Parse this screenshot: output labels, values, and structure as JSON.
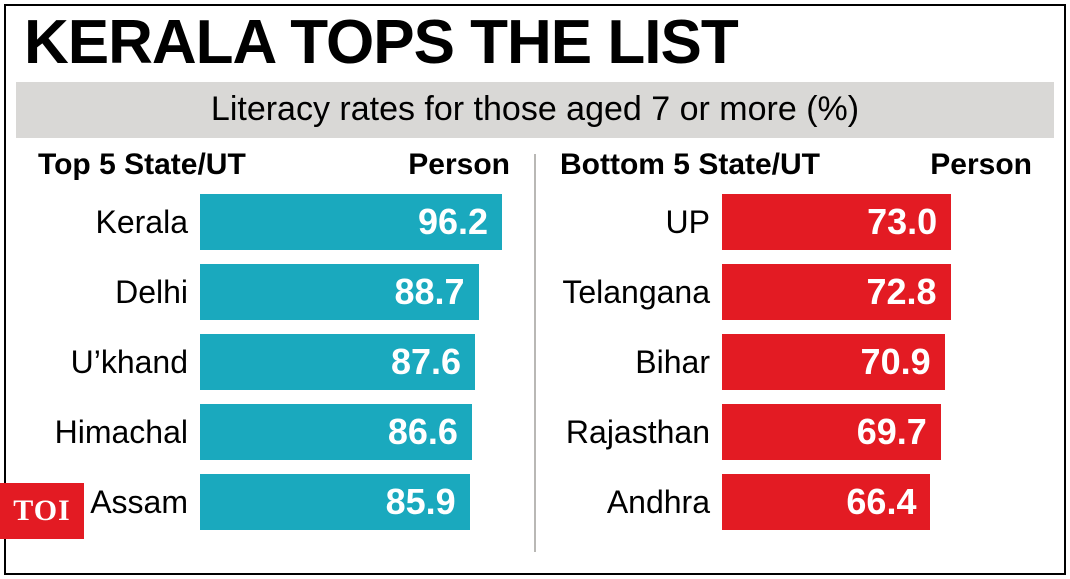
{
  "title": "KERALA TOPS THE LIST",
  "title_fontsize": 62,
  "subtitle": "Literacy rates for those aged 7 or more (%)",
  "subtitle_fontsize": 34,
  "subtitle_bg": "#d9d8d6",
  "background_color": "#ffffff",
  "border_color": "#000000",
  "header_fontsize": 30,
  "label_fontsize": 32,
  "value_fontsize": 36,
  "divider_color": "#b9b8b5",
  "bar_label_color": "#ffffff",
  "bar_scale_max": 100,
  "left": {
    "header_left": "Top 5 State/UT",
    "header_right": "Person",
    "bar_color": "#1aa9be",
    "rows": [
      {
        "label": "Kerala",
        "value": 96.2,
        "display": "96.2"
      },
      {
        "label": "Delhi",
        "value": 88.7,
        "display": "88.7"
      },
      {
        "label": "U’khand",
        "value": 87.6,
        "display": "87.6"
      },
      {
        "label": "Himachal",
        "value": 86.6,
        "display": "86.6"
      },
      {
        "label": "Assam",
        "value": 85.9,
        "display": "85.9"
      }
    ]
  },
  "right": {
    "header_left": "Bottom 5 State/UT",
    "header_right": "Person",
    "bar_color": "#e31b23",
    "rows": [
      {
        "label": "UP",
        "value": 73.0,
        "display": "73.0"
      },
      {
        "label": "Telangana",
        "value": 72.8,
        "display": "72.8"
      },
      {
        "label": "Bihar",
        "value": 70.9,
        "display": "70.9"
      },
      {
        "label": "Rajasthan",
        "value": 69.7,
        "display": "69.7"
      },
      {
        "label": "Andhra",
        "value": 66.4,
        "display": "66.4"
      }
    ]
  },
  "badge": {
    "text": "TOI",
    "bg": "#e31b23",
    "color": "#ffffff",
    "fontsize": 30
  }
}
